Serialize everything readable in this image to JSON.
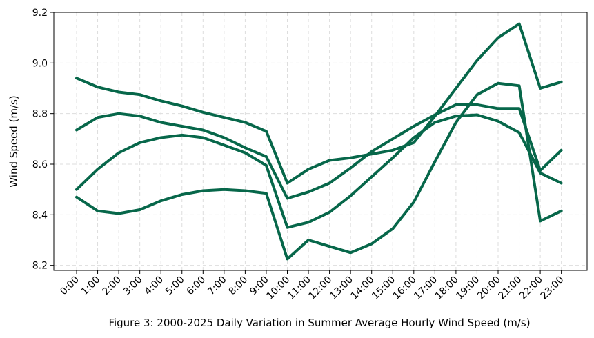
{
  "chart_data": {
    "type": "line",
    "title": "",
    "caption": "Figure 3: 2000-2025 Daily Variation in Summer Average Hourly Wind Speed (m/s)",
    "xlabel": "",
    "ylabel": "Wind Speed (m/s)",
    "ylim": [
      8.18,
      9.2
    ],
    "yticks": [
      8.2,
      8.4,
      8.6,
      8.8,
      9.0,
      9.2
    ],
    "ytick_labels": [
      "8.2",
      "8.4",
      "8.6",
      "8.8",
      "9.0",
      "9.2"
    ],
    "grid": true,
    "legend": "none",
    "color": "#07674A",
    "categories": [
      "0:00",
      "1:00",
      "2:00",
      "3:00",
      "4:00",
      "5:00",
      "6:00",
      "7:00",
      "8:00",
      "9:00",
      "10:00",
      "11:00",
      "12:00",
      "13:00",
      "14:00",
      "15:00",
      "16:00",
      "17:00",
      "18:00",
      "19:00",
      "20:00",
      "21:00",
      "22:00",
      "23:00"
    ],
    "series": [
      {
        "values": [
          8.94,
          8.905,
          8.885,
          8.875,
          8.85,
          8.83,
          8.805,
          8.785,
          8.765,
          8.73,
          8.525,
          8.58,
          8.615,
          8.625,
          8.64,
          8.655,
          8.685,
          8.79,
          8.9,
          9.01,
          9.1,
          9.155,
          8.9,
          8.925
        ]
      },
      {
        "values": [
          8.735,
          8.785,
          8.8,
          8.79,
          8.765,
          8.75,
          8.735,
          8.705,
          8.665,
          8.63,
          8.465,
          8.49,
          8.525,
          8.585,
          8.65,
          8.7,
          8.75,
          8.795,
          8.835,
          8.835,
          8.82,
          8.82,
          8.575,
          8.655
        ]
      },
      {
        "values": [
          8.5,
          8.58,
          8.645,
          8.685,
          8.705,
          8.715,
          8.705,
          8.675,
          8.645,
          8.595,
          8.35,
          8.37,
          8.41,
          8.475,
          8.55,
          8.625,
          8.705,
          8.765,
          8.79,
          8.795,
          8.77,
          8.725,
          8.565,
          8.525
        ]
      },
      {
        "values": [
          8.47,
          8.415,
          8.405,
          8.42,
          8.455,
          8.48,
          8.495,
          8.5,
          8.495,
          8.485,
          8.225,
          8.3,
          8.275,
          8.25,
          8.285,
          8.345,
          8.45,
          8.61,
          8.765,
          8.875,
          8.92,
          8.91,
          8.375,
          8.415
        ]
      }
    ]
  }
}
